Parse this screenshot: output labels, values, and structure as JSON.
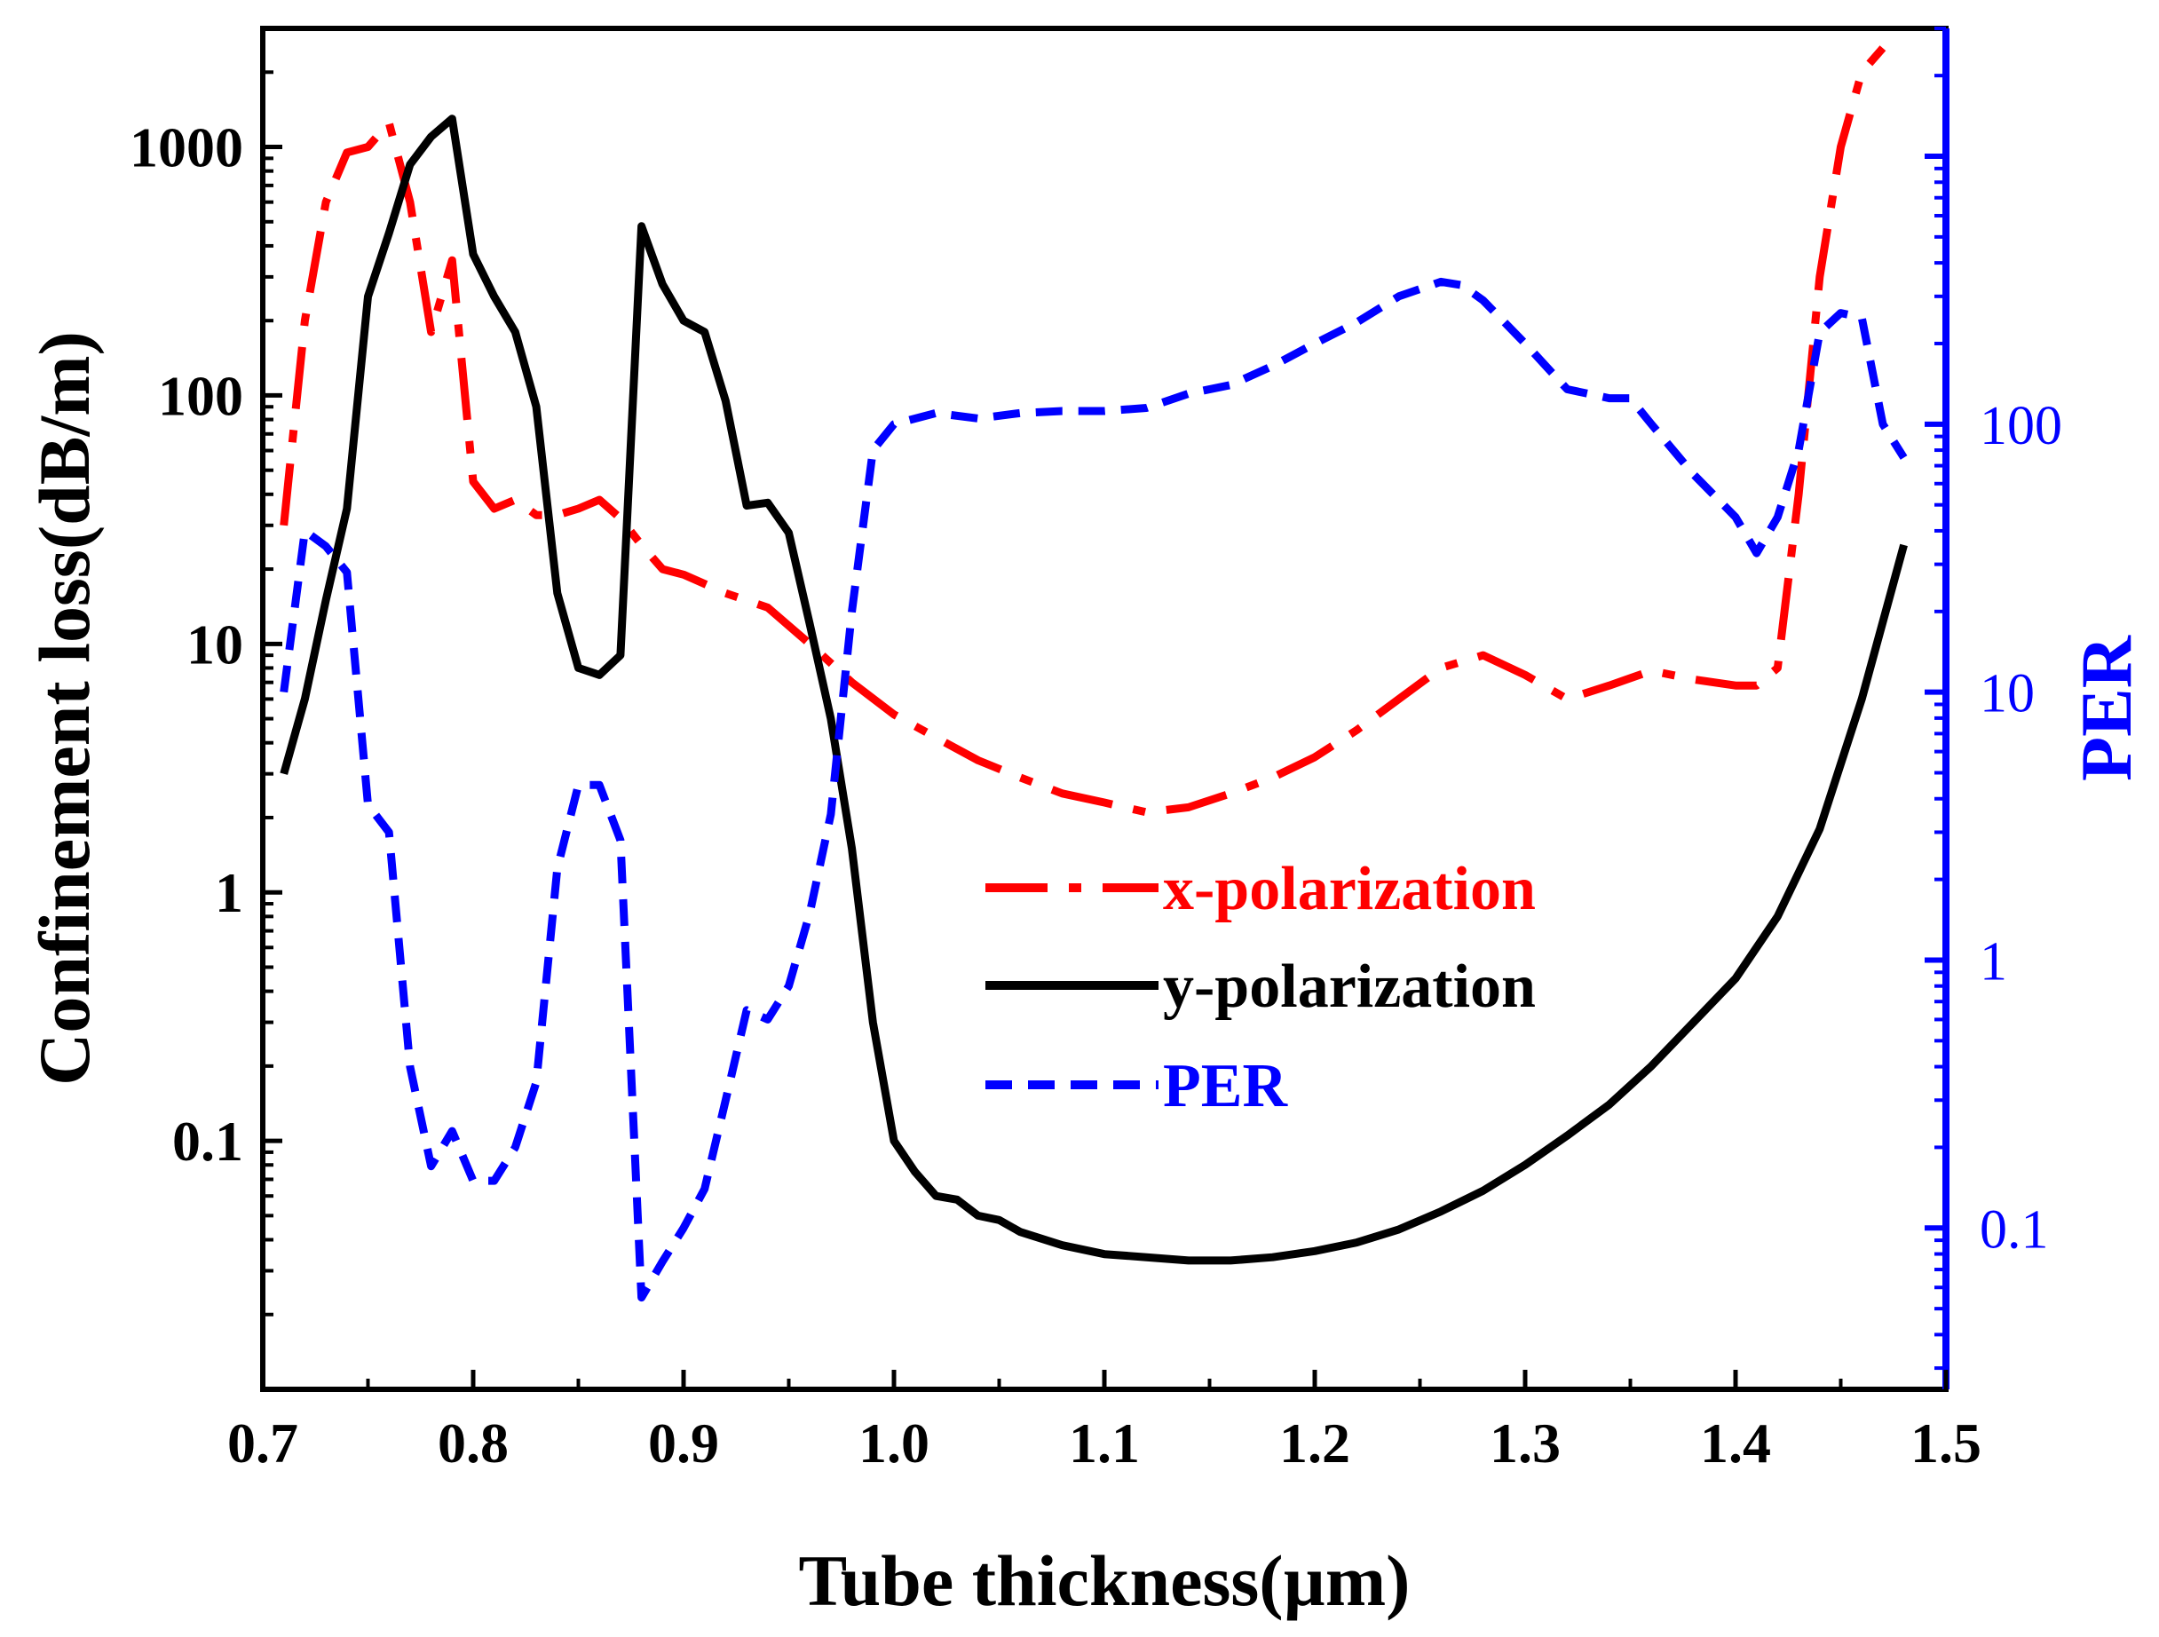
{
  "chart_data": {
    "type": "line",
    "xlabel": "Tube thickness(µm)",
    "ylabel_left": "Confinement loss(dB/m)",
    "ylabel_right": "PER",
    "xlim": [
      0.7,
      1.5
    ],
    "ylim_left": [
      0.01,
      3000
    ],
    "ylim_right": [
      0.025,
      3000
    ],
    "yscale_left": "log",
    "yscale_right": "log",
    "x_ticks": [
      "0.7",
      "0.8",
      "0.9",
      "1.0",
      "1.1",
      "1.2",
      "1.3",
      "1.4",
      "1.5"
    ],
    "y_left_ticks": [
      {
        "value": 0.1,
        "label": "0.1"
      },
      {
        "value": 1,
        "label": "1"
      },
      {
        "value": 10,
        "label": "10"
      },
      {
        "value": 100,
        "label": "100"
      },
      {
        "value": 1000,
        "label": "1000"
      }
    ],
    "y_right_ticks": [
      {
        "value": 0.1,
        "label": "0.1"
      },
      {
        "value": 1,
        "label": "1"
      },
      {
        "value": 10,
        "label": "10"
      },
      {
        "value": 100,
        "label": "100"
      }
    ],
    "legend_position": "center-right",
    "series": [
      {
        "name": "x-polarization",
        "axis": "left",
        "color": "#ff0000",
        "style": "dash-dot",
        "x": [
          0.71,
          0.72,
          0.73,
          0.74,
          0.75,
          0.76,
          0.77,
          0.78,
          0.79,
          0.8,
          0.81,
          0.82,
          0.83,
          0.84,
          0.85,
          0.86,
          0.87,
          0.88,
          0.89,
          0.9,
          0.92,
          0.94,
          0.96,
          0.98,
          1.0,
          1.02,
          1.04,
          1.06,
          1.08,
          1.1,
          1.12,
          1.14,
          1.16,
          1.18,
          1.2,
          1.22,
          1.24,
          1.26,
          1.28,
          1.3,
          1.32,
          1.34,
          1.36,
          1.38,
          1.4,
          1.41,
          1.42,
          1.43,
          1.44,
          1.45,
          1.46,
          1.47
        ],
        "values": [
          30,
          200,
          600,
          950,
          1000,
          1250,
          600,
          180,
          350,
          45,
          35,
          38,
          33,
          33,
          35,
          38,
          32,
          25,
          20,
          19,
          16,
          14,
          10,
          7,
          5.2,
          4.2,
          3.4,
          2.9,
          2.5,
          2.3,
          2.1,
          2.2,
          2.5,
          2.9,
          3.5,
          4.5,
          6,
          8,
          9,
          7.5,
          6,
          6.8,
          7.8,
          7.2,
          6.8,
          6.8,
          8,
          40,
          300,
          1000,
          2000,
          2500
        ]
      },
      {
        "name": "y-polarization",
        "axis": "left",
        "color": "#000000",
        "style": "solid",
        "x": [
          0.71,
          0.72,
          0.73,
          0.74,
          0.75,
          0.76,
          0.77,
          0.78,
          0.79,
          0.8,
          0.81,
          0.82,
          0.83,
          0.84,
          0.85,
          0.86,
          0.87,
          0.88,
          0.89,
          0.9,
          0.91,
          0.92,
          0.93,
          0.94,
          0.95,
          0.96,
          0.97,
          0.98,
          0.99,
          1.0,
          1.01,
          1.02,
          1.03,
          1.04,
          1.05,
          1.06,
          1.08,
          1.1,
          1.12,
          1.14,
          1.16,
          1.18,
          1.2,
          1.22,
          1.24,
          1.26,
          1.28,
          1.3,
          1.32,
          1.34,
          1.36,
          1.38,
          1.4,
          1.42,
          1.44,
          1.46,
          1.48
        ],
        "values": [
          3,
          6,
          15,
          35,
          250,
          450,
          850,
          1100,
          1300,
          370,
          250,
          180,
          90,
          16,
          8,
          7.5,
          9,
          480,
          280,
          200,
          180,
          95,
          36,
          37,
          28,
          12,
          5,
          1.5,
          0.3,
          0.1,
          0.075,
          0.06,
          0.058,
          0.05,
          0.048,
          0.043,
          0.038,
          0.035,
          0.034,
          0.033,
          0.033,
          0.034,
          0.036,
          0.039,
          0.044,
          0.052,
          0.063,
          0.08,
          0.105,
          0.14,
          0.2,
          0.3,
          0.45,
          0.8,
          1.8,
          6,
          25
        ]
      },
      {
        "name": "PER",
        "axis": "right",
        "color": "#0000ff",
        "style": "dashed",
        "x": [
          0.71,
          0.72,
          0.73,
          0.74,
          0.75,
          0.76,
          0.77,
          0.78,
          0.79,
          0.8,
          0.81,
          0.82,
          0.83,
          0.84,
          0.85,
          0.86,
          0.87,
          0.88,
          0.89,
          0.9,
          0.91,
          0.92,
          0.93,
          0.94,
          0.95,
          0.96,
          0.97,
          0.98,
          0.99,
          1.0,
          1.02,
          1.04,
          1.06,
          1.08,
          1.1,
          1.12,
          1.14,
          1.16,
          1.18,
          1.2,
          1.22,
          1.24,
          1.26,
          1.27,
          1.28,
          1.3,
          1.32,
          1.34,
          1.35,
          1.36,
          1.38,
          1.4,
          1.41,
          1.42,
          1.43,
          1.44,
          1.45,
          1.46,
          1.47,
          1.48
        ],
        "values": [
          10,
          40,
          35,
          28,
          3.8,
          3,
          0.4,
          0.17,
          0.23,
          0.15,
          0.15,
          0.2,
          0.35,
          2.2,
          4.5,
          4.5,
          2.8,
          0.055,
          0.075,
          0.1,
          0.14,
          0.3,
          0.65,
          0.6,
          0.8,
          1.5,
          3.5,
          20,
          80,
          100,
          110,
          105,
          110,
          112,
          112,
          115,
          130,
          140,
          165,
          200,
          240,
          300,
          340,
          330,
          290,
          200,
          135,
          125,
          125,
          100,
          65,
          45,
          33,
          45,
          80,
          220,
          260,
          250,
          100,
          75
        ]
      }
    ]
  }
}
